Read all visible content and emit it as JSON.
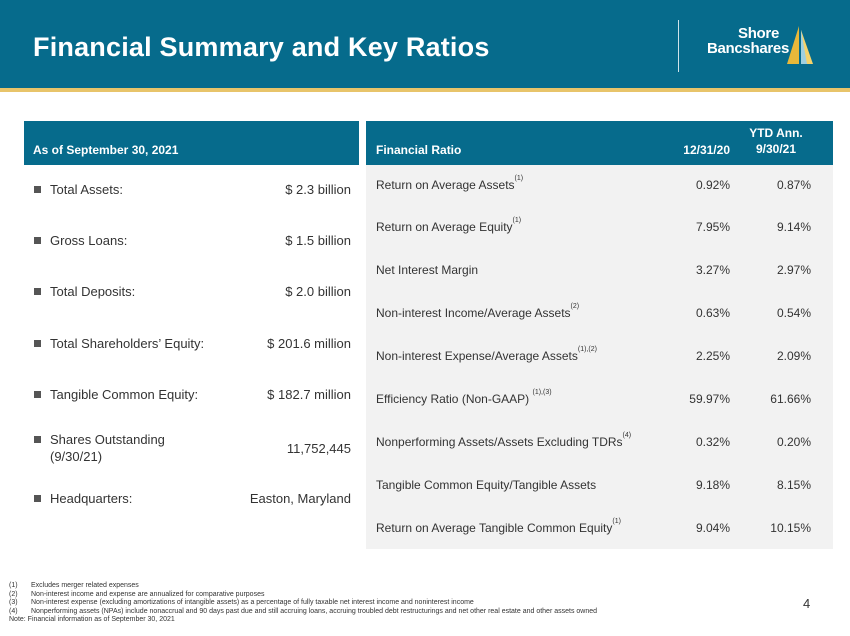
{
  "header": {
    "title": "Financial Summary and Key Ratios",
    "logo_line1": "Shore",
    "logo_line2": "Bancshares"
  },
  "summary": {
    "heading": "As of September 30, 2021",
    "items": [
      {
        "label": "Total Assets:",
        "value": "$ 2.3 billion"
      },
      {
        "label": "Gross Loans:",
        "value": "$ 1.5 billion"
      },
      {
        "label": "Total Deposits:",
        "value": "$ 2.0 billion"
      },
      {
        "label": "Total Shareholders’ Equity:",
        "value": "$ 201.6 million"
      },
      {
        "label": "Tangible Common Equity:",
        "value": "$ 182.7 million"
      },
      {
        "label": "Shares Outstanding",
        "label2": "(9/30/21)",
        "value": "11,752,445"
      },
      {
        "label": "Headquarters:",
        "value": "Easton, Maryland"
      }
    ]
  },
  "ratios": {
    "col_label": "Financial Ratio",
    "col1": "12/31/20",
    "col2_line1": "YTD Ann.",
    "col2_line2": "9/30/21",
    "rows": [
      {
        "label": "Return on Average Assets",
        "note": "(1)",
        "v1": "0.92%",
        "v2": "0.87%"
      },
      {
        "label": "Return on Average Equity",
        "note": "(1)",
        "v1": "7.95%",
        "v2": "9.14%"
      },
      {
        "label": "Net Interest Margin",
        "note": "",
        "v1": "3.27%",
        "v2": "2.97%"
      },
      {
        "label": "Non-interest Income/Average Assets",
        "note": "(2)",
        "v1": "0.63%",
        "v2": "0.54%"
      },
      {
        "label": "Non-interest Expense/Average Assets",
        "note": "(1),(2)",
        "v1": "2.25%",
        "v2": "2.09%"
      },
      {
        "label": "Efficiency Ratio (Non-GAAP) ",
        "note": "(1),(3)",
        "v1": "59.97%",
        "v2": "61.66%"
      },
      {
        "label": "Nonperforming Assets/Assets Excluding TDRs",
        "note": "(4)",
        "v1": "0.32%",
        "v2": "0.20%"
      },
      {
        "label": "Tangible Common Equity/Tangible Assets",
        "note": "",
        "v1": "9.18%",
        "v2": "8.15%"
      },
      {
        "label": "Return on Average Tangible Common Equity",
        "note": "(1)",
        "v1": "9.04%",
        "v2": "10.15%"
      }
    ]
  },
  "footnotes": [
    {
      "num": "(1)",
      "text": "Excludes merger related expenses"
    },
    {
      "num": "(2)",
      "text": "Non-interest income and expense are annualized for comparative purposes"
    },
    {
      "num": "(3)",
      "text": "Non-interest expense (excluding amortizations of intangible assets) as a percentage of fully taxable net interest income and noninterest income"
    },
    {
      "num": "(4)",
      "text": "Nonperforming assets (NPAs) include nonaccrual and 90 days past due and still accruing loans, accruing troubled debt restructurings and net other real estate and other assets owned"
    }
  ],
  "note": "Note: Financial information as of September 30, 2021",
  "page_number": "4",
  "colors": {
    "header_blue": "#066b8c",
    "accent_gold": "#e8c46a",
    "panel_gray": "#f2f2f2"
  }
}
